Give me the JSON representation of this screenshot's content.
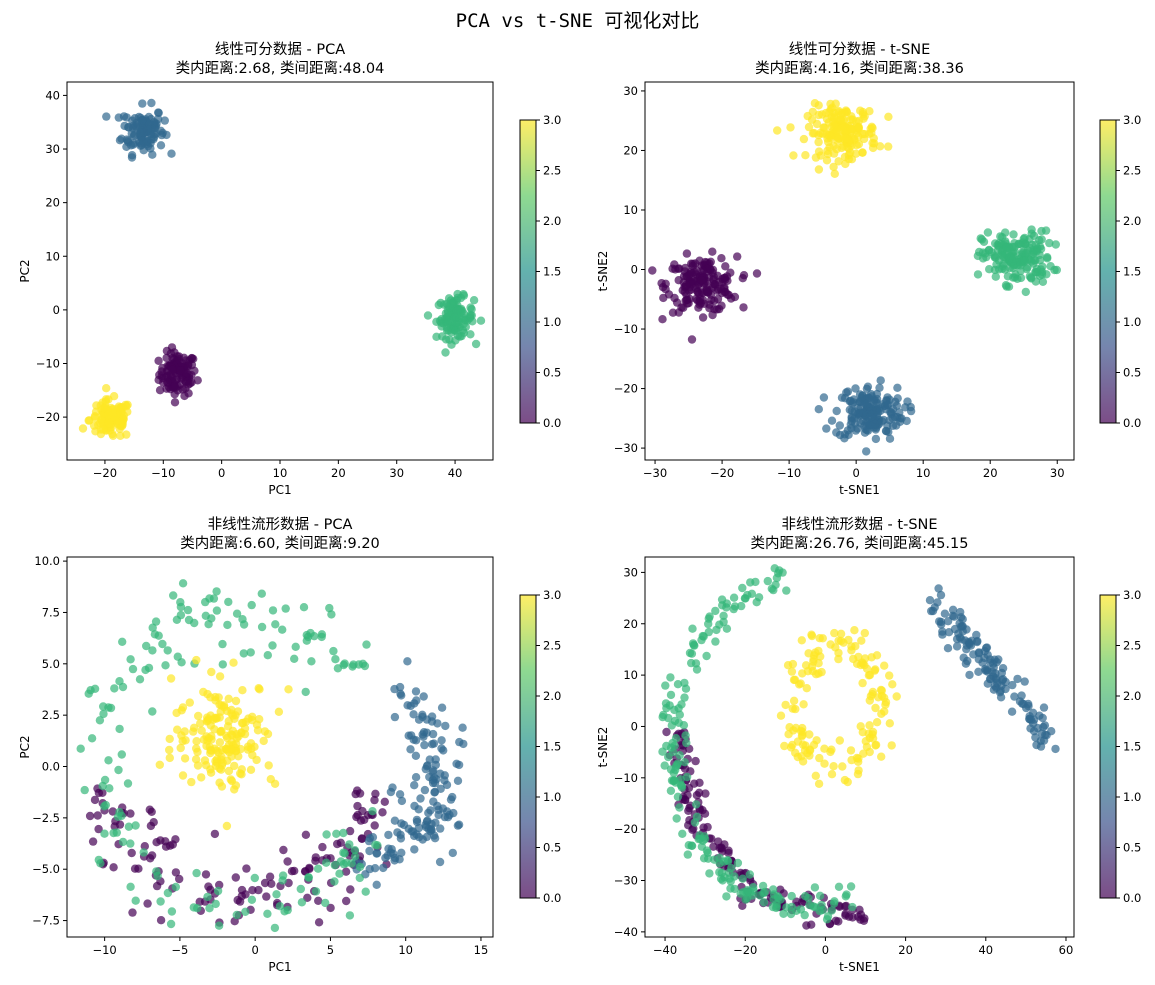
{
  "figure": {
    "title": "PCA vs t-SNE 可视化对比"
  },
  "colormap": {
    "name": "viridis",
    "stops": [
      "#440154",
      "#3b528b",
      "#21918c",
      "#5ec962",
      "#fde725"
    ],
    "class_colors": [
      "#440154",
      "#31688e",
      "#35b779",
      "#fde725"
    ],
    "alpha": 0.7
  },
  "chart_data": [
    {
      "type": "scatter",
      "title_line1": "线性可分数据 - PCA",
      "title_line2": "类内距离:2.68, 类间距离:48.04",
      "xlabel": "PC1",
      "ylabel": "PC2",
      "xlim": [
        -26.5,
        46.5
      ],
      "ylim": [
        -28,
        42.5
      ],
      "xticks": [
        -20,
        -10,
        0,
        10,
        20,
        30,
        40
      ],
      "yticks": [
        -20,
        -10,
        0,
        10,
        20,
        30,
        40
      ],
      "colorbar": {
        "range": [
          0,
          3
        ],
        "ticks": [
          "0.0",
          "0.5",
          "1.0",
          "1.5",
          "2.0",
          "2.5",
          "3.0"
        ]
      },
      "series": [
        {
          "name": "0",
          "shape": "blob",
          "center": [
            -7.5,
            -12
          ],
          "spread": [
            1.6,
            2.0
          ],
          "count": 110
        },
        {
          "name": "1",
          "shape": "blob",
          "center": [
            -13.5,
            33.5
          ],
          "spread": [
            1.8,
            2.2
          ],
          "count": 110
        },
        {
          "name": "2",
          "shape": "blob",
          "center": [
            40,
            -1.5
          ],
          "spread": [
            1.6,
            1.9
          ],
          "count": 110
        },
        {
          "name": "3",
          "shape": "blob",
          "center": [
            -19,
            -20.5
          ],
          "spread": [
            1.8,
            1.8
          ],
          "count": 110
        }
      ]
    },
    {
      "type": "scatter",
      "title_line1": "线性可分数据 - t-SNE",
      "title_line2": "类内距离:4.16, 类间距离:38.36",
      "xlabel": "t-SNE1",
      "ylabel": "t-SNE2",
      "xlim": [
        -31.5,
        32.5
      ],
      "ylim": [
        -32,
        31.5
      ],
      "xticks": [
        -30,
        -20,
        -10,
        0,
        10,
        20,
        30
      ],
      "yticks": [
        -30,
        -20,
        -10,
        0,
        10,
        20,
        30
      ],
      "colorbar": {
        "range": [
          0,
          3
        ],
        "ticks": [
          "0.0",
          "0.5",
          "1.0",
          "1.5",
          "2.0",
          "2.5",
          "3.0"
        ]
      },
      "series": [
        {
          "name": "0",
          "shape": "blob",
          "center": [
            -23,
            -2.5
          ],
          "spread": [
            2.6,
            2.3
          ],
          "count": 170
        },
        {
          "name": "1",
          "shape": "blob",
          "center": [
            2,
            -24
          ],
          "spread": [
            2.6,
            2.3
          ],
          "count": 170
        },
        {
          "name": "2",
          "shape": "blob",
          "center": [
            24,
            2
          ],
          "spread": [
            2.6,
            2.2
          ],
          "count": 170
        },
        {
          "name": "3",
          "shape": "blob",
          "center": [
            -2,
            23
          ],
          "spread": [
            2.6,
            2.2
          ],
          "count": 170
        }
      ]
    },
    {
      "type": "scatter",
      "title_line1": "非线性流形数据 - PCA",
      "title_line2": "类内距离:6.60, 类间距离:9.20",
      "xlabel": "PC1",
      "ylabel": "PC2",
      "xlim": [
        -12.5,
        15.8
      ],
      "ylim": [
        -8.3,
        10.2
      ],
      "xticks": [
        -10,
        -5,
        0,
        5,
        10,
        15
      ],
      "yticks": [
        -7.5,
        -5.0,
        -2.5,
        0.0,
        2.5,
        5.0,
        7.5,
        10.0
      ],
      "colorbar": {
        "range": [
          0,
          3
        ],
        "ticks": [
          "0.0",
          "0.5",
          "1.0",
          "1.5",
          "2.0",
          "2.5",
          "3.0"
        ]
      },
      "series": [
        {
          "name": "0",
          "shape": "arc",
          "center": [
            -1,
            -0.5
          ],
          "radius": [
            9,
            5.8
          ],
          "angle_range": [
            185,
            345
          ],
          "noise": 0.9,
          "count": 140
        },
        {
          "name": "1",
          "shape": "arc",
          "center": [
            2,
            -0.5
          ],
          "radius": [
            10.5,
            5
          ],
          "angle_range": [
            -60,
            45
          ],
          "noise": 0.9,
          "count": 150
        },
        {
          "name": "2",
          "shape": "arc",
          "center": [
            -1,
            0
          ],
          "radius": [
            8.8,
            7.5
          ],
          "angle_range": [
            35,
            340
          ],
          "noise": 1.0,
          "count": 180
        },
        {
          "name": "3",
          "shape": "blob",
          "center": [
            -2,
            1.5
          ],
          "spread": [
            1.7,
            1.3
          ],
          "count": 170
        }
      ]
    },
    {
      "type": "scatter",
      "title_line1": "非线性流形数据 - t-SNE",
      "title_line2": "类内距离:26.76, 类间距离:45.15",
      "xlabel": "t-SNE1",
      "ylabel": "t-SNE2",
      "xlim": [
        -45,
        62
      ],
      "ylim": [
        -41,
        33
      ],
      "xticks": [
        -40,
        -20,
        0,
        20,
        40,
        60
      ],
      "yticks": [
        -40,
        -30,
        -20,
        -10,
        0,
        10,
        20,
        30
      ],
      "colorbar": {
        "range": [
          0,
          3
        ],
        "ticks": [
          "0.0",
          "0.5",
          "1.0",
          "1.5",
          "2.0",
          "2.5",
          "3.0"
        ]
      },
      "series": [
        {
          "name": "0",
          "shape": "arc",
          "center": [
            2,
            -3
          ],
          "radius": [
            38,
            33
          ],
          "angle_range": [
            175,
            280
          ],
          "noise": 1.5,
          "count": 150
        },
        {
          "name": "1",
          "shape": "line",
          "from": [
            28,
            23
          ],
          "to": [
            55,
            -2
          ],
          "noise": 1.6,
          "count": 130
        },
        {
          "name": "2",
          "shape": "arc",
          "center": [
            -5,
            -3
          ],
          "radius": [
            33,
            32
          ],
          "angle_range": [
            100,
            290
          ],
          "noise": 1.5,
          "count": 200
        },
        {
          "name": "3",
          "shape": "ring",
          "center": [
            3,
            4
          ],
          "radius": [
            11,
            12
          ],
          "noise": 2.0,
          "count": 150
        }
      ]
    }
  ]
}
